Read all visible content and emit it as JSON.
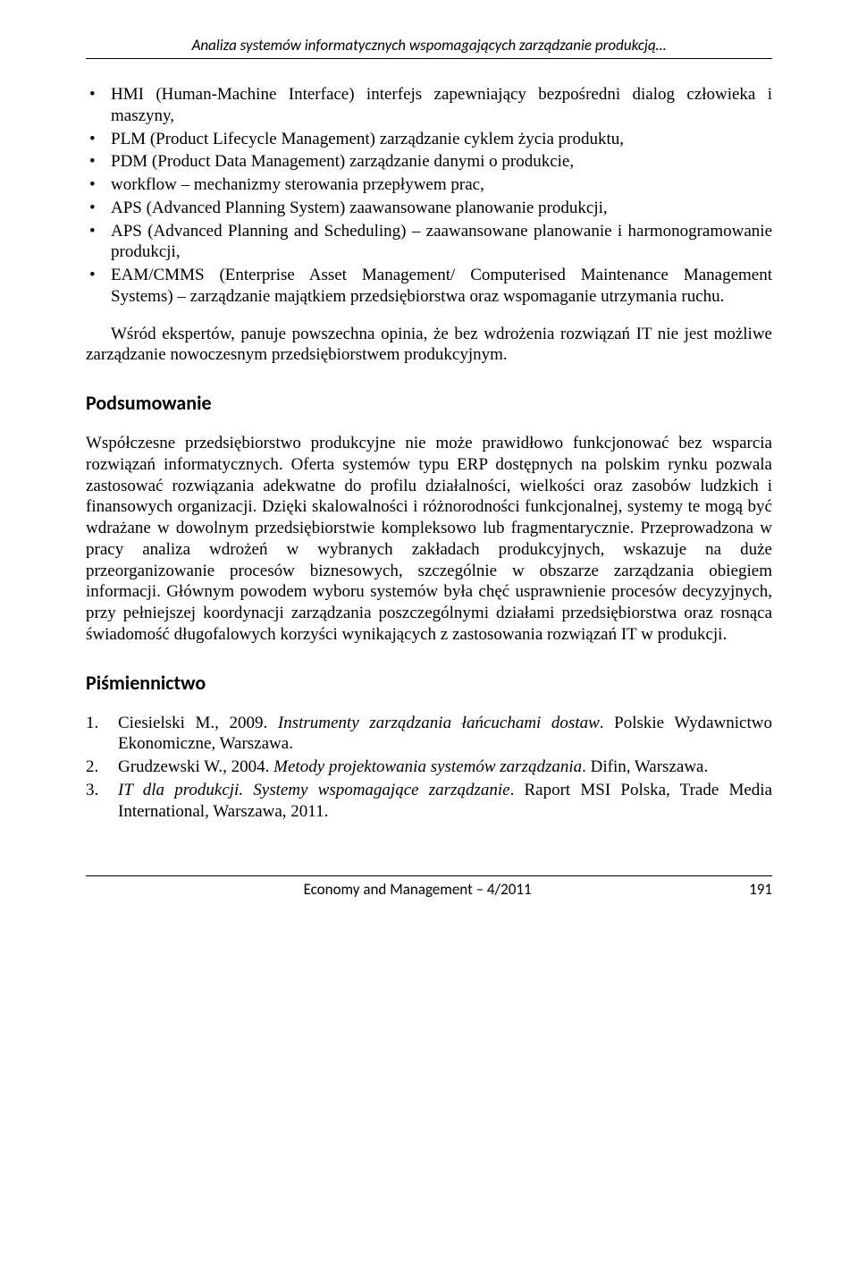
{
  "header": {
    "running_title": "Analiza systemów informatycznych wspomagających zarządzanie produkcją…"
  },
  "bullets": [
    "HMI (Human-Machine Interface) interfejs zapewniający bezpośredni dialog człowieka i maszyny,",
    "PLM (Product Lifecycle Management) zarządzanie cyklem życia produktu,",
    "PDM (Product Data Management) zarządzanie danymi o produkcie,",
    "workflow – mechanizmy sterowania przepływem prac,",
    "APS (Advanced Planning System) zaawansowane planowanie produkcji,",
    "APS (Advanced Planning and Scheduling) – zaawansowane planowanie i harmonogramowanie produkcji,",
    "EAM/CMMS (Enterprise Asset Management/ Computerised Maintenance Management Systems) – zarządzanie majątkiem przedsiębiorstwa oraz wspomaganie utrzymania ruchu."
  ],
  "para_after_bullets": "Wśród ekspertów, panuje powszechna opinia, że bez wdrożenia rozwiązań IT nie jest możliwe zarządzanie nowoczesnym przedsiębiorstwem produkcyjnym.",
  "section_summary": {
    "heading": "Podsumowanie",
    "text": "Współczesne przedsiębiorstwo produkcyjne nie może prawidłowo funkcjonować bez wsparcia rozwiązań informatycznych. Oferta systemów typu ERP dostępnych na polskim rynku pozwala zastosować rozwiązania adekwatne do profilu działalności, wielkości oraz zasobów ludzkich i finansowych organizacji. Dzięki skalowalności i różnorodności funkcjonalnej, systemy te mogą być wdrażane w dowolnym przedsiębiorstwie kompleksowo lub fragmentarycznie. Przeprowadzona w pracy analiza wdrożeń w wybranych zakładach produkcyjnych, wskazuje na duże przeorganizowanie procesów biznesowych, szczególnie w obszarze zarządzania obiegiem informacji. Głównym powodem wyboru systemów była chęć usprawnienie procesów decyzyjnych, przy pełniejszej koordynacji zarządzania poszczególnymi działami przedsiębiorstwa oraz rosnąca świadomość długofalowych korzyści wynikających z zastosowania rozwiązań IT w produkcji."
  },
  "section_refs": {
    "heading": "Piśmiennictwo",
    "items": [
      {
        "pre": "Ciesielski M., 2009. ",
        "italic": "Instrumenty zarządzania łańcuchami dostaw",
        "post": ". Polskie Wydawnictwo Ekonomiczne, Warszawa."
      },
      {
        "pre": "Grudzewski W., 2004. ",
        "italic": "Metody projektowania systemów zarządzania",
        "post": ". Difin, Warszawa."
      },
      {
        "pre": "",
        "italic": "IT dla produkcji. Systemy wspomagające zarządzanie",
        "post": ". Raport MSI Polska, Trade Media International, Warszawa, 2011."
      }
    ]
  },
  "footer": {
    "journal": "Economy and Management – 4/2011",
    "page": "191"
  }
}
